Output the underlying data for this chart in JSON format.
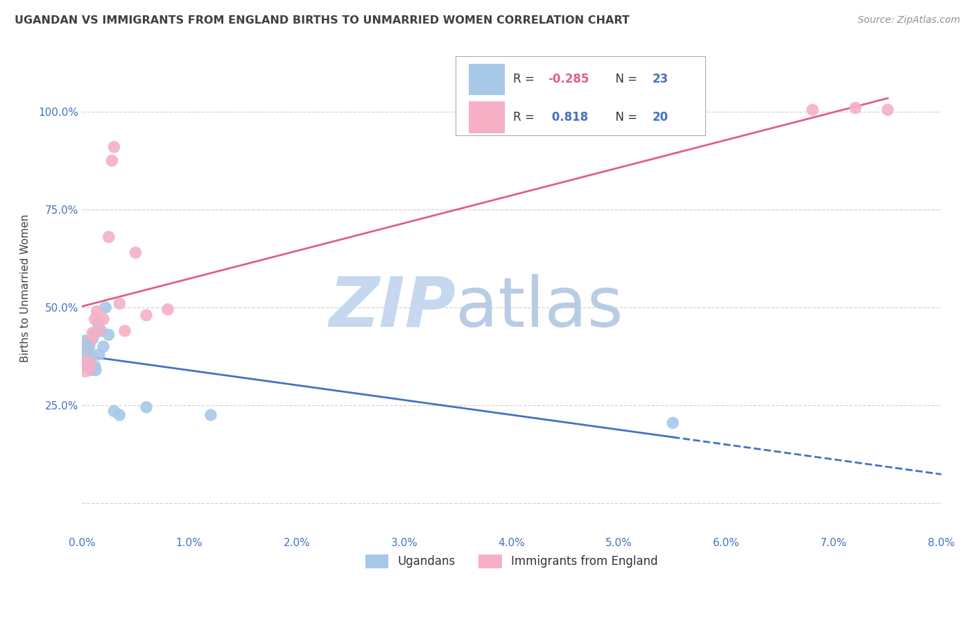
{
  "title": "UGANDAN VS IMMIGRANTS FROM ENGLAND BIRTHS TO UNMARRIED WOMEN CORRELATION CHART",
  "source": "Source: ZipAtlas.com",
  "ylabel": "Births to Unmarried Women",
  "legend_label1": "Ugandans",
  "legend_label2": "Immigrants from England",
  "r1": "-0.285",
  "n1": "23",
  "r2": "0.818",
  "n2": "20",
  "watermark_zip": "ZIP",
  "watermark_atlas": "atlas",
  "ugandan_x": [
    0.0002,
    0.0003,
    0.0004,
    0.0005,
    0.0006,
    0.0007,
    0.0008,
    0.0009,
    0.001,
    0.0011,
    0.0012,
    0.0013,
    0.0015,
    0.0016,
    0.0018,
    0.002,
    0.0022,
    0.0025,
    0.003,
    0.0035,
    0.006,
    0.012,
    0.055
  ],
  "ugandan_y": [
    0.39,
    0.415,
    0.38,
    0.35,
    0.36,
    0.405,
    0.37,
    0.34,
    0.42,
    0.43,
    0.35,
    0.34,
    0.46,
    0.38,
    0.44,
    0.4,
    0.5,
    0.43,
    0.235,
    0.225,
    0.245,
    0.225,
    0.205
  ],
  "england_x": [
    0.0003,
    0.0005,
    0.0006,
    0.0008,
    0.001,
    0.0012,
    0.0014,
    0.0016,
    0.002,
    0.0025,
    0.0028,
    0.003,
    0.0035,
    0.004,
    0.005,
    0.006,
    0.008,
    0.068,
    0.072,
    0.075
  ],
  "england_y": [
    0.35,
    0.39,
    0.38,
    0.415,
    0.435,
    0.47,
    0.49,
    0.44,
    0.47,
    0.68,
    0.875,
    0.91,
    0.51,
    0.44,
    0.64,
    0.48,
    0.495,
    1.005,
    1.01,
    1.005
  ],
  "blue_color": "#a8c8e8",
  "pink_color": "#f5b0c5",
  "blue_line_color": "#4472c4",
  "pink_line_color": "#e06080",
  "title_color": "#404040",
  "source_color": "#909090",
  "axis_tick_color": "#4472c4",
  "background_color": "#ffffff",
  "watermark_zip_color": "#c5d8ef",
  "watermark_atlas_color": "#b8cce4",
  "xlim": [
    0.0,
    0.08
  ],
  "ylim": [
    -0.08,
    1.18
  ],
  "xticks": [
    0.0,
    0.01,
    0.02,
    0.03,
    0.04,
    0.05,
    0.06,
    0.07,
    0.08
  ],
  "xticklabels": [
    "0.0%",
    "1.0%",
    "2.0%",
    "3.0%",
    "4.0%",
    "5.0%",
    "6.0%",
    "7.0%",
    "8.0%"
  ],
  "yticks": [
    0.0,
    0.25,
    0.5,
    0.75,
    1.0
  ],
  "yticklabels": [
    "",
    "25.0%",
    "50.0%",
    "75.0%",
    "100.0%"
  ]
}
